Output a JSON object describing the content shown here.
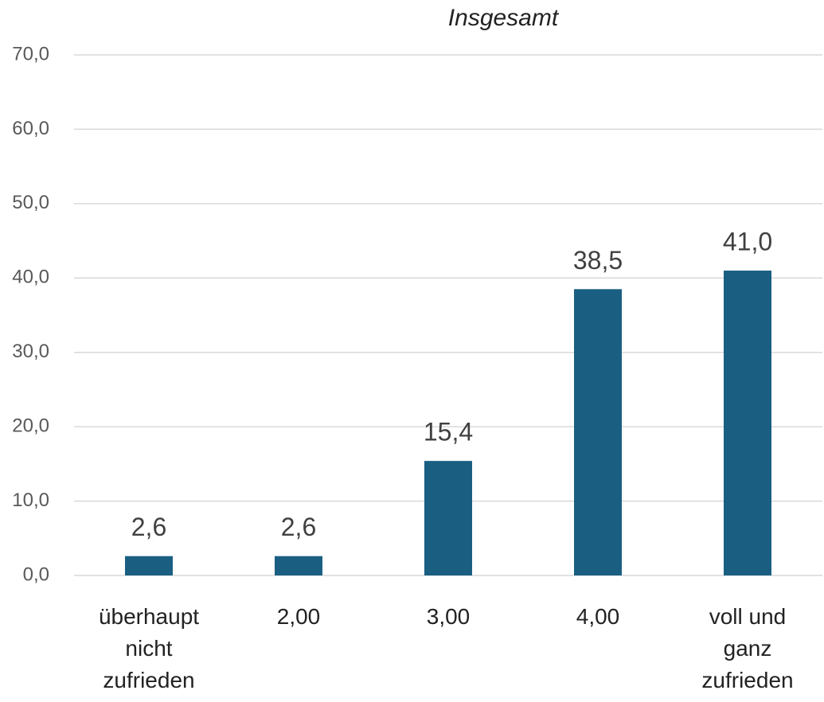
{
  "chart_data": {
    "type": "bar",
    "title": "Insgesamt",
    "categories": [
      "überhaupt nicht zufrieden",
      "2,00",
      "3,00",
      "4,00",
      "voll und ganz zufrieden"
    ],
    "values": [
      2.6,
      2.6,
      15.4,
      38.5,
      41.0
    ],
    "value_labels": [
      "2,6",
      "2,6",
      "15,4",
      "38,5",
      "41,0"
    ],
    "color": "#1a5f82",
    "ylim": [
      0,
      70
    ],
    "yticks": [
      {
        "value": 0,
        "label": "0,0"
      },
      {
        "value": 10,
        "label": "10,0"
      },
      {
        "value": 20,
        "label": "20,0"
      },
      {
        "value": 30,
        "label": "30,0"
      },
      {
        "value": 40,
        "label": "40,0"
      },
      {
        "value": 50,
        "label": "50,0"
      },
      {
        "value": 60,
        "label": "60,0"
      },
      {
        "value": 70,
        "label": "70,0"
      }
    ],
    "grid": true
  }
}
